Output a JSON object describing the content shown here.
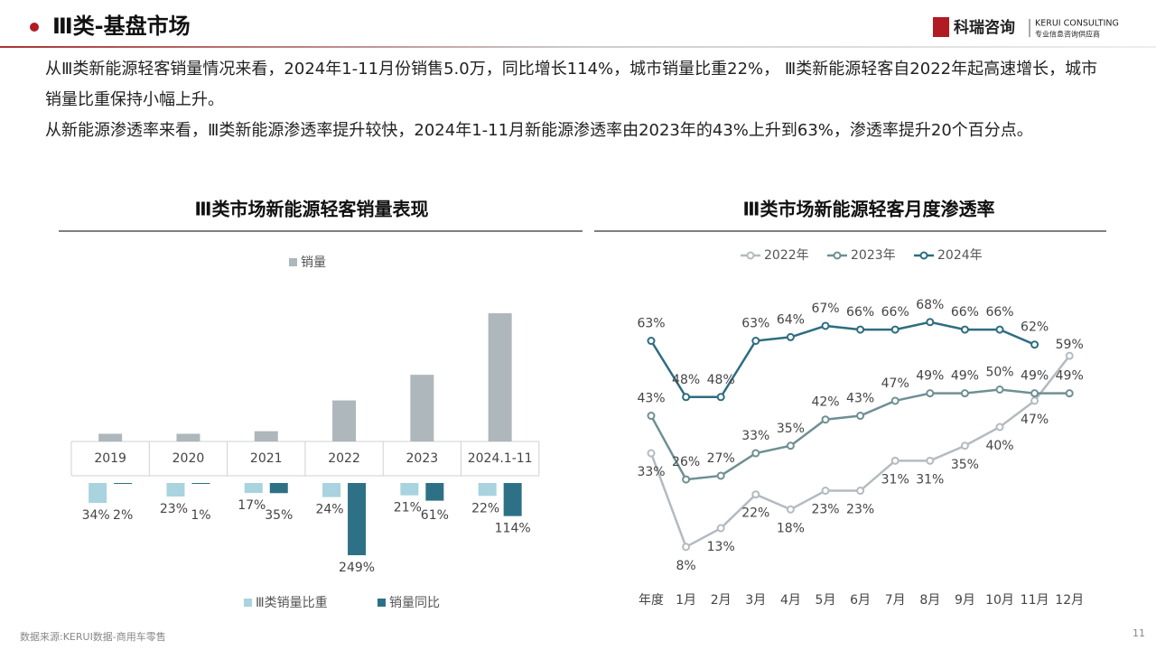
{
  "header": {
    "title": "Ⅲ类-基盘市场"
  },
  "logo": {
    "name": "科瑞咨询",
    "english": "KERUI CONSULTING",
    "slogan": "专业信息咨询供应商"
  },
  "paragraphs": [
    "从Ⅲ类新能源轻客销量情况来看，2024年1-11月份销售5.0万，同比增长114%，城市销量比重22%， Ⅲ类新能源轻客自2022年起高速增长，城市销量比重保持小幅上升。",
    "从新能源渗透率来看，Ⅲ类新能源渗透率提升较快，2024年1-11月新能源渗透率由2023年的43%上升到63%，渗透率提升20个百分点。"
  ],
  "chart_data": [
    {
      "type": "bar",
      "title": "Ⅲ类市场新能源轻客销量表现",
      "categories": [
        "2019",
        "2020",
        "2021",
        "2022",
        "2023",
        "2024.1-11"
      ],
      "series": [
        {
          "name": "销量",
          "color": "#aeb7bb",
          "values": [
            0.3,
            0.3,
            0.4,
            1.6,
            2.6,
            5.0
          ]
        },
        {
          "name": "Ⅲ类销量比重",
          "color": "#a8d3df",
          "values": [
            34,
            23,
            17,
            24,
            21,
            22
          ],
          "value_labels": [
            "34%",
            "23%",
            "17%",
            "24%",
            "21%",
            "22%"
          ]
        },
        {
          "name": "销量同比",
          "color": "#2e7186",
          "values": [
            2,
            1,
            35,
            249,
            61,
            114
          ],
          "value_labels": [
            "2%",
            "1%",
            "35%",
            "249%",
            "61%",
            "114%"
          ]
        }
      ]
    },
    {
      "type": "line",
      "title": "Ⅲ类市场新能源轻客月度渗透率",
      "categories": [
        "年度",
        "1月",
        "2月",
        "3月",
        "4月",
        "5月",
        "6月",
        "7月",
        "8月",
        "9月",
        "10月",
        "11月",
        "12月"
      ],
      "series": [
        {
          "name": "2022年",
          "color": "#b3bbc0",
          "values": [
            33,
            8,
            13,
            22,
            18,
            23,
            23,
            31,
            31,
            35,
            40,
            47,
            59
          ],
          "value_labels": [
            "33%",
            "8%",
            "13%",
            "22%",
            "18%",
            "23%",
            "23%",
            "31%",
            "31%",
            "35%",
            "40%",
            "47%",
            "59%"
          ]
        },
        {
          "name": "2023年",
          "color": "#6f8f94",
          "values": [
            43,
            26,
            27,
            33,
            35,
            42,
            43,
            47,
            49,
            49,
            50,
            49,
            49
          ],
          "value_labels": [
            "43%",
            "26%",
            "27%",
            "33%",
            "35%",
            "42%",
            "43%",
            "47%",
            "49%",
            "49%",
            "50%",
            "49%",
            "49%"
          ]
        },
        {
          "name": "2024年",
          "color": "#2e6d80",
          "values": [
            63,
            48,
            48,
            63,
            64,
            67,
            66,
            66,
            68,
            66,
            66,
            62,
            null
          ],
          "value_labels": [
            "63%",
            "48%",
            "48%",
            "63%",
            "64%",
            "67%",
            "66%",
            "66%",
            "68%",
            "66%",
            "66%",
            "62%",
            null
          ]
        }
      ]
    }
  ],
  "source": "数据来源:KERUI数据-商用车零售",
  "page_number": "11"
}
